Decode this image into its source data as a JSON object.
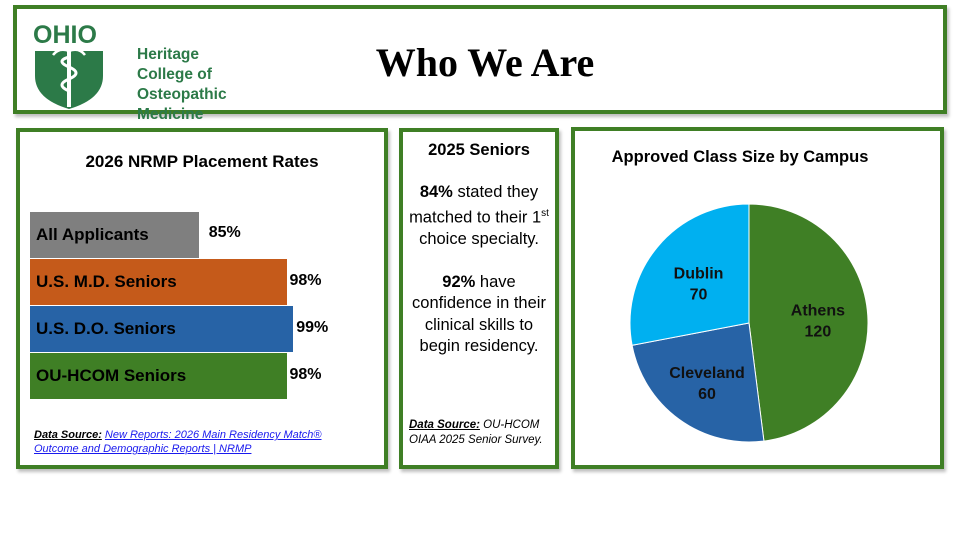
{
  "header": {
    "logo_wordmark": "OHIO",
    "logo_lines": [
      "Heritage",
      "College of",
      "Osteopathic",
      "Medicine"
    ],
    "title": "Who We Are"
  },
  "nrmp": {
    "title": "2026 NRMP Placement Rates",
    "source_label": "Data Source:",
    "source_link": "New Reports: 2026 Main Residency Match® Outcome and Demographic Reports | NRMP",
    "chart_data": {
      "type": "bar",
      "orientation": "horizontal",
      "categories": [
        "All Applicants",
        "U.S. M.D. Seniors",
        "U.S. D.O. Seniors",
        "OU-HCOM Seniors"
      ],
      "values": [
        85,
        98,
        99,
        98
      ],
      "value_labels": [
        "85%",
        "98%",
        "99%",
        "98%"
      ],
      "colors": [
        "#7f7f7f",
        "#c55a1a",
        "#2763a6",
        "#3f7f25"
      ],
      "title": "2026 NRMP Placement Rates"
    }
  },
  "seniors": {
    "title": "2025 Seniors",
    "stat1_value": "84%",
    "stat1_pre": " stated they matched to their 1",
    "stat1_sup": "st",
    "stat1_post": " choice specialty.",
    "stat2_value": "92%",
    "stat2_text": " have confidence in their clinical skills to begin residency.",
    "source_label": "Data Source:",
    "source_text": " OU-HCOM OIAA 2025 Senior Survey."
  },
  "class_size": {
    "title": "Approved Class Size by Campus",
    "chart_data": {
      "type": "pie",
      "title": "Approved Class Size by Campus",
      "categories": [
        "Athens",
        "Cleveland",
        "Dublin"
      ],
      "values": [
        120,
        60,
        70
      ],
      "colors": [
        "#3f7f25",
        "#2763a6",
        "#00b0f0"
      ]
    }
  },
  "colors": {
    "accent_green": "#3f7f25",
    "logo_green": "#2c7a48"
  }
}
